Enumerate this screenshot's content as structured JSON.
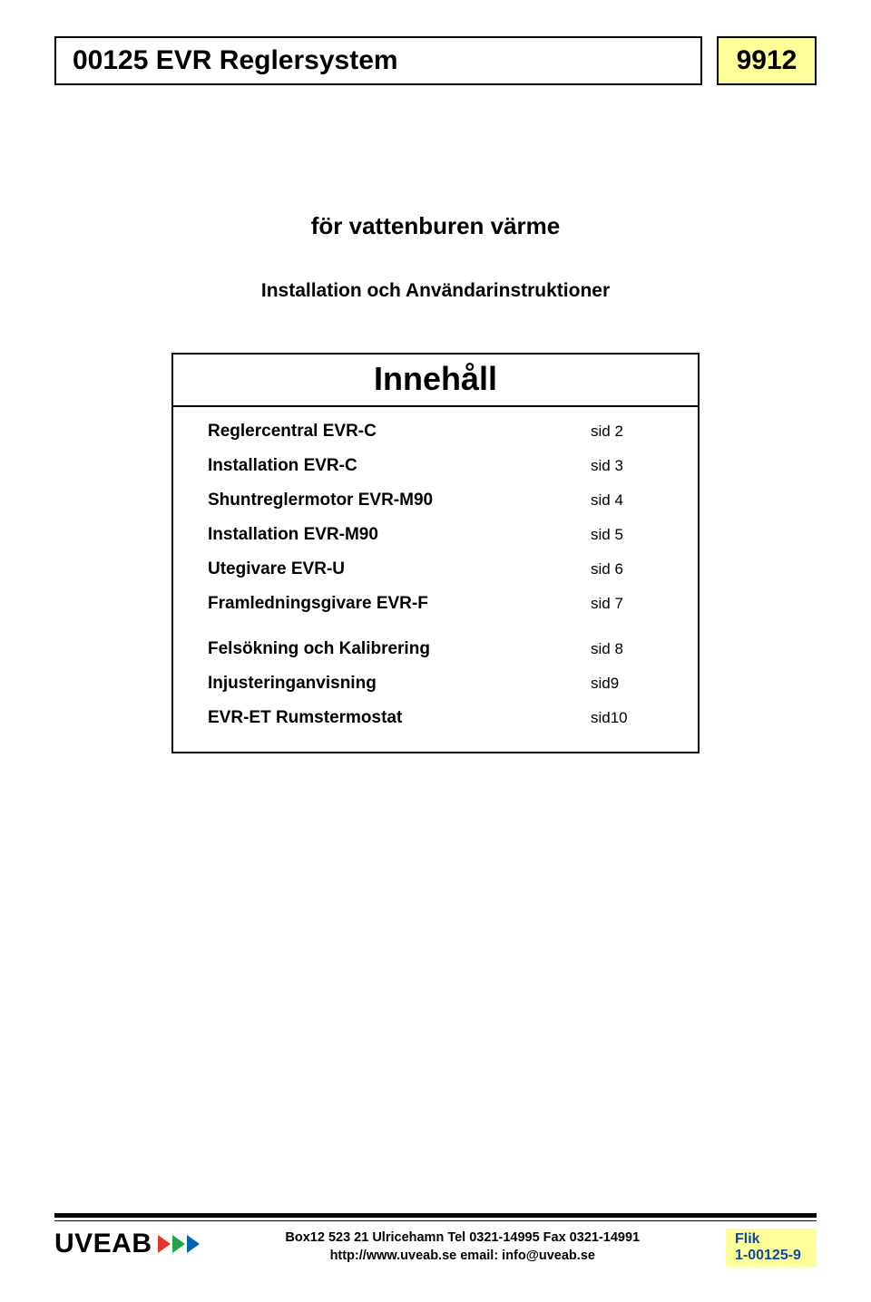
{
  "header": {
    "title": "00125 EVR Reglersystem",
    "code": "9912"
  },
  "subtitle": "för vattenburen värme",
  "install_line": "Installation och Användarinstruktioner",
  "toc": {
    "heading": "Innehåll",
    "rows": [
      {
        "label": "Reglercentral EVR-C",
        "page": "sid 2"
      },
      {
        "label": "Installation EVR-C",
        "page": "sid 3"
      },
      {
        "label": "Shuntreglermotor EVR-M90",
        "page": "sid 4"
      },
      {
        "label": "Installation EVR-M90",
        "page": "sid 5"
      },
      {
        "label": "Utegivare EVR-U",
        "page": "sid 6"
      },
      {
        "label": "Framledningsgivare EVR-F",
        "page": "sid 7"
      },
      {
        "label": "Felsökning och Kalibrering",
        "page": "sid 8"
      },
      {
        "label": "Injusteringanvisning",
        "page": "sid9"
      },
      {
        "label": "EVR-ET Rumstermostat",
        "page": "sid10"
      }
    ]
  },
  "footer": {
    "logo_text": "UVEAB",
    "contact_line1": "Box12 523 21 Ulricehamn Tel 0321-14995 Fax 0321-14991",
    "contact_line2": "http://www.uveab.se  email: info@uveab.se",
    "flik_label": "Flik",
    "flik_code": "1-00125-9"
  },
  "colors": {
    "highlight_bg": "#ffff99",
    "flik_text": "#0b4aa0",
    "tri_red": "#e53528",
    "tri_green": "#1fa54a",
    "tri_blue": "#0066b3"
  }
}
